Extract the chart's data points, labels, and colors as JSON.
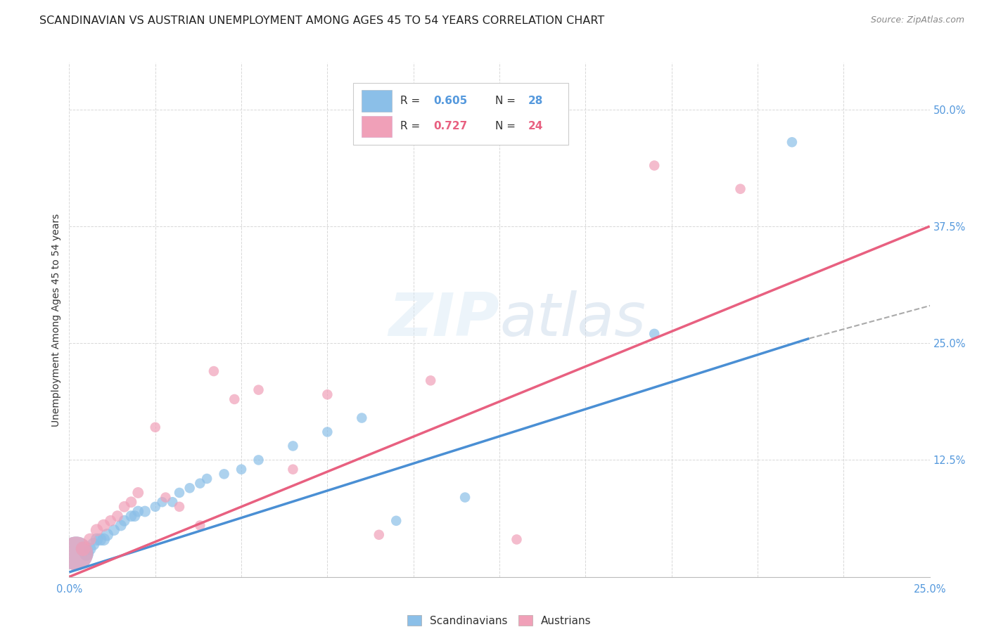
{
  "title": "SCANDINAVIAN VS AUSTRIAN UNEMPLOYMENT AMONG AGES 45 TO 54 YEARS CORRELATION CHART",
  "source": "Source: ZipAtlas.com",
  "ylabel": "Unemployment Among Ages 45 to 54 years",
  "xlim": [
    0.0,
    0.25
  ],
  "ylim": [
    0.0,
    0.55
  ],
  "background_color": "#ffffff",
  "grid_color": "#d8d8d8",
  "scandinavian_color": "#8bbfe8",
  "austrian_color": "#f0a0b8",
  "scandinavian_line_color": "#4a8fd4",
  "austrian_line_color": "#e86080",
  "dashed_line_color": "#aaaaaa",
  "tick_color": "#5599dd",
  "title_fontsize": 11.5,
  "axis_label_fontsize": 10,
  "tick_fontsize": 10.5,
  "legend_fontsize": 11,
  "scandinavians_x": [
    0.002,
    0.004,
    0.005,
    0.006,
    0.007,
    0.008,
    0.009,
    0.01,
    0.011,
    0.013,
    0.015,
    0.016,
    0.018,
    0.019,
    0.02,
    0.022,
    0.025,
    0.027,
    0.03,
    0.032,
    0.035,
    0.038,
    0.04,
    0.045,
    0.05,
    0.055,
    0.065,
    0.075,
    0.085,
    0.095,
    0.115,
    0.17,
    0.21
  ],
  "scandinavians_y": [
    0.025,
    0.03,
    0.025,
    0.03,
    0.035,
    0.04,
    0.04,
    0.04,
    0.045,
    0.05,
    0.055,
    0.06,
    0.065,
    0.065,
    0.07,
    0.07,
    0.075,
    0.08,
    0.08,
    0.09,
    0.095,
    0.1,
    0.105,
    0.11,
    0.115,
    0.125,
    0.14,
    0.155,
    0.17,
    0.06,
    0.085,
    0.26,
    0.465
  ],
  "austrians_x": [
    0.002,
    0.004,
    0.006,
    0.008,
    0.01,
    0.012,
    0.014,
    0.016,
    0.018,
    0.02,
    0.025,
    0.028,
    0.032,
    0.038,
    0.042,
    0.048,
    0.055,
    0.065,
    0.075,
    0.09,
    0.105,
    0.13,
    0.17,
    0.195
  ],
  "austrians_y": [
    0.025,
    0.03,
    0.04,
    0.05,
    0.055,
    0.06,
    0.065,
    0.075,
    0.08,
    0.09,
    0.16,
    0.085,
    0.075,
    0.055,
    0.22,
    0.19,
    0.2,
    0.115,
    0.195,
    0.045,
    0.21,
    0.04,
    0.44,
    0.415
  ],
  "scand_line_x0": 0.0,
  "scand_line_y0": 0.005,
  "scand_line_x1": 0.215,
  "scand_line_y1": 0.255,
  "aust_line_x0": 0.0,
  "aust_line_y0": 0.0,
  "aust_line_x1": 0.25,
  "aust_line_y1": 0.375,
  "dash_line_x0": 0.215,
  "dash_line_y0": 0.255,
  "dash_line_x1": 0.255,
  "dash_line_y1": 0.295
}
